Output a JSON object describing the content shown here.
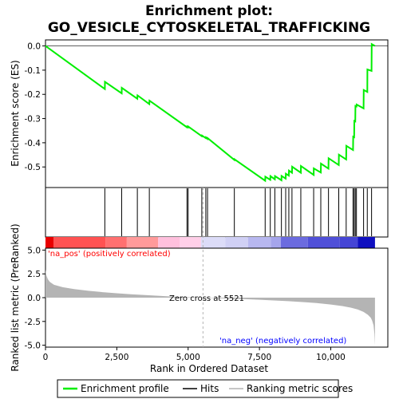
{
  "chart_data": {
    "type": "line",
    "title_line1": "Enrichment plot:",
    "title_line2": "GO_VESICLE_CYTOSKELETAL_TRAFFICKING",
    "xlabel": "Rank in Ordered Dataset",
    "es_ylabel": "Enrichment score (ES)",
    "metric_ylabel": "Ranked list metric (PreRanked)",
    "xlim": [
      0,
      12000
    ],
    "es_ylim": [
      -0.585,
      0.025
    ],
    "metric_ylim": [
      -5.2,
      5.2
    ],
    "x_ticks": [
      0,
      2500,
      5000,
      7500,
      10000
    ],
    "x_tick_labels": [
      "0",
      "2,500",
      "5,000",
      "7,500",
      "10,000"
    ],
    "es_ticks": [
      0.0,
      -0.1,
      -0.2,
      -0.3,
      -0.4,
      -0.5
    ],
    "es_tick_labels": [
      "0.0",
      "-0.1",
      "-0.2",
      "-0.3",
      "-0.4",
      "-0.5"
    ],
    "metric_ticks": [
      5.0,
      2.5,
      0.0,
      -2.5,
      -5.0
    ],
    "metric_tick_labels": [
      "5.0",
      "2.5",
      "0.0",
      "-2.5",
      "-5.0"
    ],
    "n_genes": 11550,
    "zero_cross": 5521,
    "zero_cross_label": "Zero cross at 5521",
    "pos_label": "'na_pos' (positively correlated)",
    "neg_label": "'na_neg' (negatively correlated)",
    "hits": [
      2080,
      2670,
      3220,
      3640,
      4960,
      5000,
      5480,
      5620,
      5680,
      6620,
      7700,
      7880,
      8040,
      8270,
      8420,
      8530,
      8640,
      8950,
      9400,
      9650,
      9920,
      10280,
      10540,
      10780,
      10820,
      10860,
      10900,
      11150,
      11280,
      11430
    ],
    "es_curve": {
      "x": [
        0,
        2080,
        2085,
        2670,
        2675,
        3220,
        3225,
        3640,
        3645,
        4960,
        4965,
        5000,
        5005,
        5480,
        5485,
        5620,
        5625,
        5680,
        5685,
        6620,
        6625,
        7700,
        7705,
        7880,
        7885,
        8040,
        8045,
        8270,
        8275,
        8420,
        8425,
        8530,
        8535,
        8640,
        8645,
        8950,
        8955,
        9400,
        9405,
        9650,
        9655,
        9920,
        9925,
        10280,
        10285,
        10540,
        10545,
        10780,
        10785,
        10820,
        10825,
        10860,
        10865,
        10900,
        10905,
        11150,
        11155,
        11280,
        11285,
        11430,
        11435,
        11550
      ],
      "y": [
        0.0,
        -0.178,
        -0.148,
        -0.196,
        -0.173,
        -0.218,
        -0.204,
        -0.24,
        -0.226,
        -0.336,
        -0.333,
        -0.336,
        -0.333,
        -0.373,
        -0.37,
        -0.381,
        -0.378,
        -0.384,
        -0.381,
        -0.471,
        -0.468,
        -0.557,
        -0.54,
        -0.553,
        -0.538,
        -0.551,
        -0.538,
        -0.555,
        -0.537,
        -0.548,
        -0.528,
        -0.536,
        -0.515,
        -0.524,
        -0.499,
        -0.524,
        -0.496,
        -0.533,
        -0.506,
        -0.523,
        -0.486,
        -0.507,
        -0.464,
        -0.492,
        -0.449,
        -0.469,
        -0.413,
        -0.43,
        -0.375,
        -0.377,
        -0.31,
        -0.312,
        -0.248,
        -0.25,
        -0.242,
        -0.258,
        -0.182,
        -0.19,
        -0.097,
        -0.103,
        0.008,
        0.0
      ]
    },
    "metric_curve": {
      "x": [
        0,
        30,
        80,
        150,
        300,
        600,
        1000,
        1500,
        2000,
        2500,
        3000,
        3500,
        4000,
        4500,
        5000,
        5521,
        6000,
        6500,
        7000,
        7500,
        8000,
        8500,
        9000,
        9500,
        10000,
        10400,
        10700,
        10950,
        11150,
        11300,
        11400,
        11450,
        11500,
        11530,
        11550
      ],
      "y": [
        2.95,
        2.35,
        1.95,
        1.65,
        1.35,
        1.1,
        0.9,
        0.72,
        0.58,
        0.46,
        0.36,
        0.27,
        0.19,
        0.11,
        0.05,
        0.0,
        -0.05,
        -0.1,
        -0.16,
        -0.22,
        -0.29,
        -0.37,
        -0.46,
        -0.57,
        -0.72,
        -0.88,
        -1.05,
        -1.25,
        -1.5,
        -1.8,
        -2.1,
        -2.4,
        -2.9,
        -3.8,
        -5.0
      ]
    },
    "colors": {
      "es_line": "#00ee00",
      "hit": "#000000",
      "metric_fill": "#b4b4b4",
      "zero_line": "#b4b4b4",
      "pos_text": "#ff0000",
      "neg_text": "#0000ff"
    },
    "heat_bar": [
      {
        "end": 280,
        "color": "#e80000"
      },
      {
        "end": 2100,
        "color": "#ff5252"
      },
      {
        "end": 2850,
        "color": "#ff7070"
      },
      {
        "end": 3950,
        "color": "#ff9a9a"
      },
      {
        "end": 4700,
        "color": "#ffc0dd"
      },
      {
        "end": 5450,
        "color": "#ffcfe8"
      },
      {
        "end": 6300,
        "color": "#dcdcf8"
      },
      {
        "end": 7100,
        "color": "#d0d0f5"
      },
      {
        "end": 7900,
        "color": "#b8b8f0"
      },
      {
        "end": 8250,
        "color": "#a5a5ec"
      },
      {
        "end": 9200,
        "color": "#6b6bdf"
      },
      {
        "end": 10300,
        "color": "#5050d8"
      },
      {
        "end": 10950,
        "color": "#4545d5"
      },
      {
        "end": 11550,
        "color": "#1010c0"
      }
    ]
  },
  "legend": {
    "items": [
      {
        "label": "Enrichment profile",
        "color": "#00ee00"
      },
      {
        "label": "Hits",
        "color": "#000000"
      },
      {
        "label": "Ranking metric scores",
        "color": "#b4b4b4"
      }
    ]
  }
}
